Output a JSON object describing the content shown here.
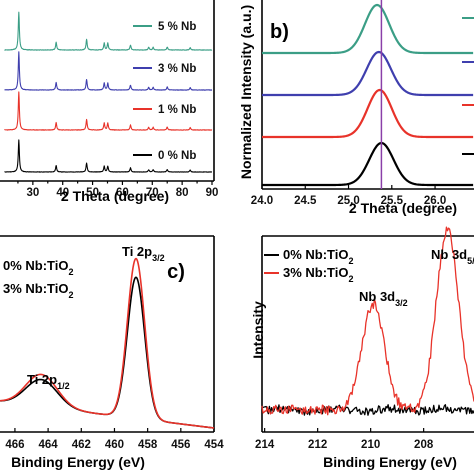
{
  "chart_data": [
    {
      "panel": "a",
      "type": "line",
      "xlabel": "2 Theta (degree)",
      "xlim": [
        20,
        90
      ],
      "xticks": [
        "30",
        "40",
        "50",
        "60",
        "70",
        "80",
        "90"
      ],
      "peaks": [
        25.3,
        37.8,
        48.0,
        53.9,
        55.1,
        62.7,
        68.8,
        70.3,
        75.0,
        82.7
      ],
      "peak_rel_heights": [
        1.0,
        0.2,
        0.28,
        0.18,
        0.18,
        0.13,
        0.07,
        0.07,
        0.08,
        0.06
      ],
      "series": [
        {
          "name": "0 % Nb",
          "color": "#000000"
        },
        {
          "name": "1 % Nb",
          "color": "#e8332a"
        },
        {
          "name": "3 % Nb",
          "color": "#3f3fae"
        },
        {
          "name": "5 % Nb",
          "color": "#3b9e86"
        }
      ]
    },
    {
      "panel": "b",
      "letter": "b)",
      "type": "line",
      "xlabel": "2 Theta (degree)",
      "ylabel": "Normalized Intensity (a.u.)",
      "xlim": [
        24.0,
        26.45
      ],
      "xticks": [
        "24.0",
        "24.5",
        "25.0",
        "25.5",
        "26.0"
      ],
      "vertical_line_x": 25.38,
      "vertical_line_color": "#8a3fa8",
      "series": [
        {
          "color": "#000000",
          "center": 25.38
        },
        {
          "color": "#e8332a",
          "center": 25.36
        },
        {
          "color": "#3f3fae",
          "center": 25.35
        },
        {
          "color": "#3b9e86",
          "center": 25.33
        }
      ]
    },
    {
      "panel": "c",
      "letter": "c)",
      "type": "line",
      "xlabel": "Binding Energy (eV)",
      "xlim": [
        466.9,
        454
      ],
      "xticks": [
        "466",
        "464",
        "462",
        "460",
        "458",
        "456",
        "454"
      ],
      "series": [
        {
          "name": "0% Nb:TiO",
          "sub": "2",
          "color": "#000000"
        },
        {
          "name": "3% Nb:TiO",
          "sub": "2",
          "color": "#e8332a"
        }
      ],
      "peaks": [
        {
          "label": "Ti 2p",
          "sub": "1/2",
          "x": 464.4
        },
        {
          "label": "Ti 2p",
          "sub": "3/2",
          "x": 458.7
        }
      ]
    },
    {
      "panel": "d",
      "type": "line",
      "xlabel": "Binding Energy (eV)",
      "ylabel": "Intensity",
      "xlim": [
        214.1,
        206.1
      ],
      "xticks": [
        "214",
        "212",
        "210",
        "208"
      ],
      "series": [
        {
          "name": "0% Nb:TiO",
          "sub": "2",
          "color": "#000000"
        },
        {
          "name": "3% Nb:TiO",
          "sub": "2",
          "color": "#e8332a"
        }
      ],
      "peaks": [
        {
          "label": "Nb 3d",
          "sub": "3/2",
          "x": 209.9
        },
        {
          "label": "Nb 3d",
          "sub": "5/",
          "x": 207.1
        }
      ]
    }
  ]
}
